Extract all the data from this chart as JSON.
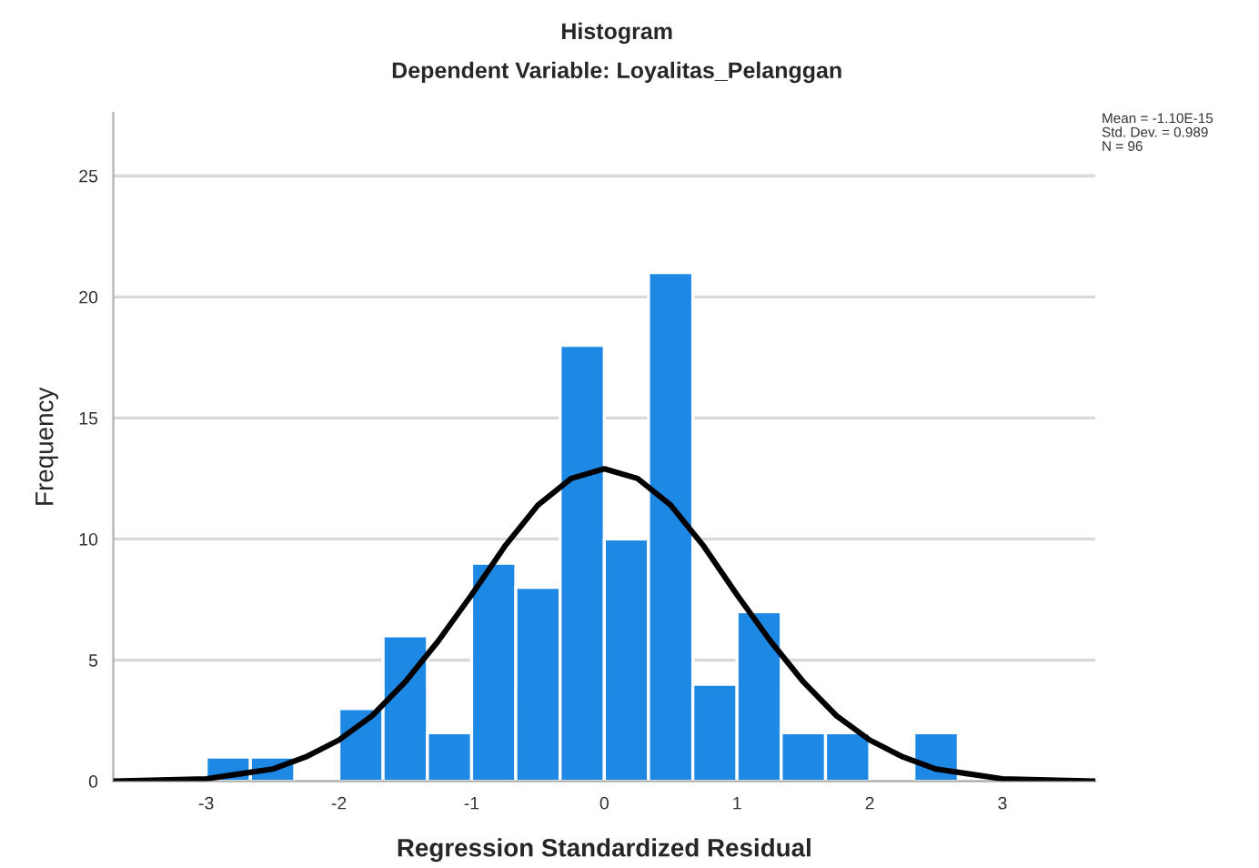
{
  "chart_data": {
    "type": "histogram",
    "title": "Histogram",
    "subtitle": "Dependent Variable: Loyalitas_Pelanggan",
    "xlabel": "Regression Standardized Residual",
    "ylabel": "Frequency",
    "bins": [
      -3,
      -2.667,
      -2.333,
      -2,
      -1.667,
      -1.333,
      -1,
      -0.667,
      -0.333,
      0,
      0.333,
      0.667,
      1,
      1.333,
      1.667,
      2,
      2.333,
      2.667
    ],
    "values": [
      1,
      1,
      0,
      3,
      6,
      2,
      9,
      8,
      18,
      10,
      21,
      4,
      7,
      2,
      2,
      0,
      2
    ],
    "color": "#1e88e5",
    "series": [
      {
        "type": "line",
        "color": "#000000",
        "x": [
          -3.7,
          -3,
          -2.75,
          -2.5,
          -2.25,
          -2,
          -1.75,
          -1.5,
          -1.25,
          -1,
          -0.75,
          -0.5,
          -0.25,
          0,
          0.25,
          0.5,
          0.75,
          1,
          1.25,
          1.5,
          1.75,
          2,
          2.25,
          2.5,
          2.75,
          3,
          3.7
        ],
        "values": [
          0,
          0.1,
          0.3,
          0.5,
          1.0,
          1.7,
          2.7,
          4.1,
          5.8,
          7.7,
          9.7,
          11.4,
          12.5,
          12.9,
          12.5,
          11.4,
          9.7,
          7.7,
          5.8,
          4.1,
          2.7,
          1.7,
          1.0,
          0.5,
          0.3,
          0.1,
          0
        ]
      }
    ],
    "xlim": [
      -3.7,
      3.7
    ],
    "xticks": [
      -3,
      -2,
      -1,
      0,
      1,
      2,
      3
    ],
    "ylim": [
      0,
      27.6
    ],
    "yticks": [
      0,
      5,
      10,
      15,
      20,
      25
    ],
    "grid": "y",
    "legend": false,
    "annotations": [
      "Mean = -1.10E-15",
      "Std. Dev. = 0.989",
      "N = 96"
    ]
  }
}
